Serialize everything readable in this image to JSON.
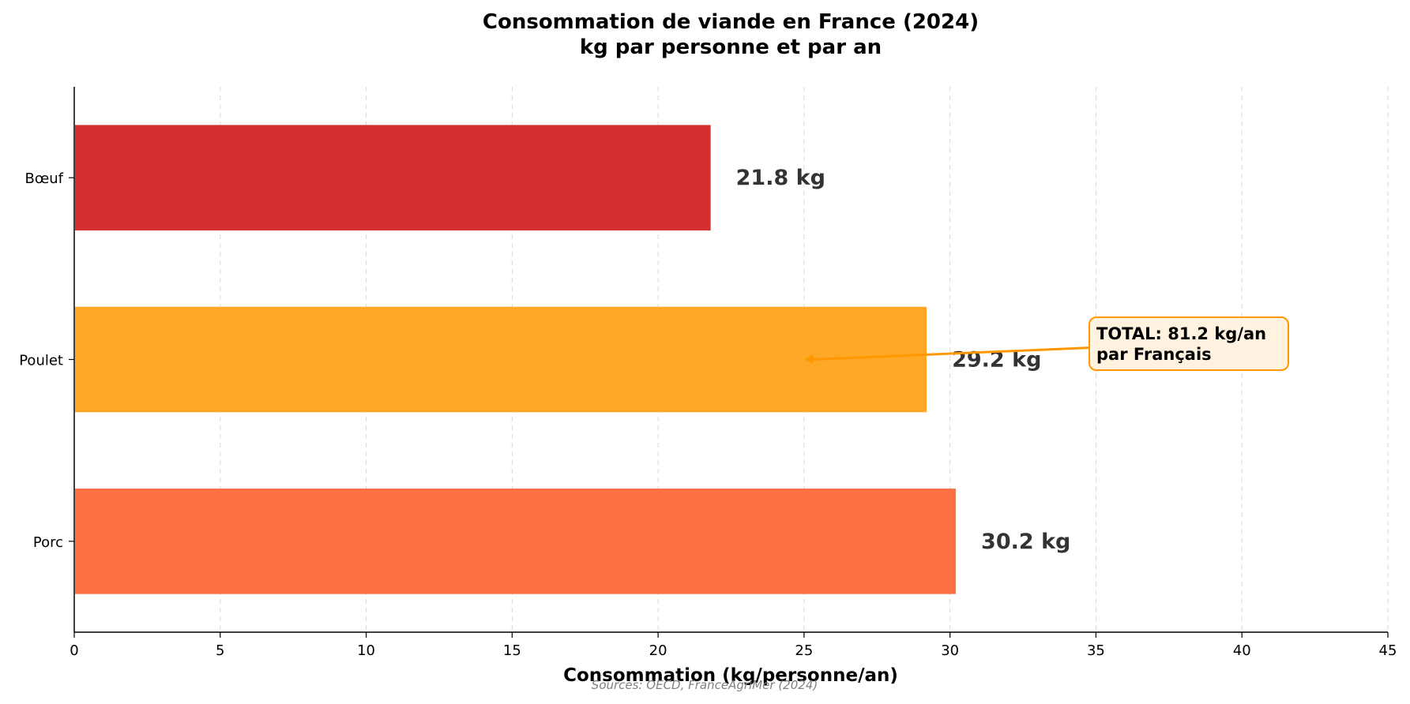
{
  "chart_data": {
    "type": "bar",
    "orientation": "horizontal",
    "title": [
      "Consommation de viande en France (2024)",
      "kg par personne et par an"
    ],
    "categories": [
      "Bœuf",
      "Poulet",
      "Porc"
    ],
    "values": [
      21.8,
      29.2,
      30.2
    ],
    "value_labels": [
      "21.8 kg",
      "29.2 kg",
      "30.2 kg"
    ],
    "colors": [
      "#d32f2f",
      "#ffa726",
      "#ff7043"
    ],
    "xlabel": "Consommation (kg/personne/an)",
    "ylabel": "",
    "xlim": [
      0,
      45
    ],
    "xticks": [
      0,
      5,
      10,
      15,
      20,
      25,
      30,
      35,
      40,
      45
    ],
    "grid": "x-dashed",
    "annotation": {
      "lines": [
        "TOTAL: 81.2 kg/an",
        "par Français"
      ],
      "arrow_target": {
        "x": 25,
        "category": "Poulet"
      },
      "text_anchor": {
        "x": 35,
        "category": "Poulet"
      },
      "box_color": "#fff3e0",
      "edge_color": "#ff9800"
    },
    "source": "Sources: OECD, FranceAgriMer (2024)"
  }
}
